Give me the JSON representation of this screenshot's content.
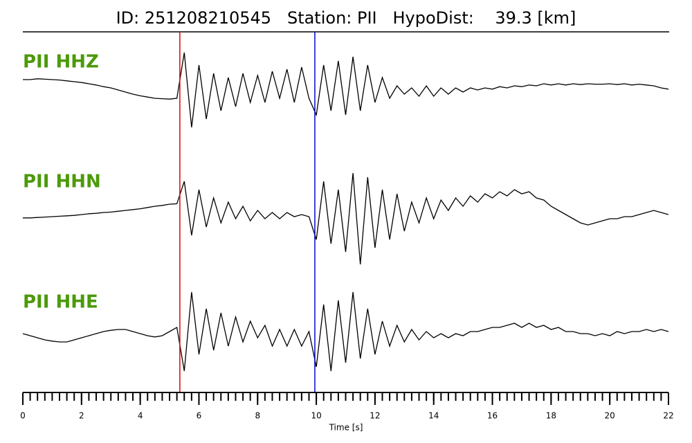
{
  "chart_data": {
    "type": "seismogram",
    "title": "ID: 251208210545   Station: PII   HypoDist:    39.3 [km]",
    "xlabel": "Time [s]",
    "xlim": [
      0,
      22
    ],
    "xticks": [
      0,
      2,
      4,
      6,
      8,
      10,
      12,
      14,
      16,
      18,
      20,
      22
    ],
    "ylim": [
      -1,
      1
    ],
    "label_color": "#4c9a0a",
    "markers": [
      {
        "x": 5.35,
        "color": "#e00000"
      },
      {
        "x": 9.95,
        "color": "#0000cc"
      }
    ],
    "x": [
      0,
      0.25,
      0.5,
      0.75,
      1,
      1.25,
      1.5,
      1.75,
      2,
      2.25,
      2.5,
      2.75,
      3,
      3.25,
      3.5,
      3.75,
      4,
      4.25,
      4.5,
      4.75,
      5,
      5.25,
      5.5,
      5.75,
      6,
      6.25,
      6.5,
      6.75,
      7,
      7.25,
      7.5,
      7.75,
      8,
      8.25,
      8.5,
      8.75,
      9,
      9.25,
      9.5,
      9.75,
      10,
      10.25,
      10.5,
      10.75,
      11,
      11.25,
      11.5,
      11.75,
      12,
      12.25,
      12.5,
      12.75,
      13,
      13.25,
      13.5,
      13.75,
      14,
      14.25,
      14.5,
      14.75,
      15,
      15.25,
      15.5,
      15.75,
      16,
      16.25,
      16.5,
      16.75,
      17,
      17.25,
      17.5,
      17.75,
      18,
      18.25,
      18.5,
      18.75,
      19,
      19.25,
      19.5,
      19.75,
      20,
      20.25,
      20.5,
      20.75,
      21,
      21.25,
      21.5,
      21.75,
      22
    ],
    "series": [
      {
        "name": "PII HHZ",
        "color": "#000000",
        "values": [
          0.25,
          0.25,
          0.27,
          0.26,
          0.25,
          0.24,
          0.22,
          0.2,
          0.18,
          0.15,
          0.12,
          0.08,
          0.05,
          0.0,
          -0.05,
          -0.1,
          -0.14,
          -0.17,
          -0.2,
          -0.21,
          -0.22,
          -0.2,
          0.9,
          -0.9,
          0.6,
          -0.7,
          0.4,
          -0.5,
          0.3,
          -0.4,
          0.4,
          -0.3,
          0.35,
          -0.3,
          0.45,
          -0.2,
          0.5,
          -0.3,
          0.55,
          -0.2,
          -0.6,
          0.6,
          -0.5,
          0.7,
          -0.6,
          0.8,
          -0.5,
          0.6,
          -0.3,
          0.3,
          -0.2,
          0.1,
          -0.1,
          0.05,
          -0.15,
          0.1,
          -0.15,
          0.05,
          -0.1,
          0.05,
          -0.05,
          0.05,
          0,
          0.05,
          0.02,
          0.08,
          0.05,
          0.1,
          0.08,
          0.12,
          0.1,
          0.15,
          0.12,
          0.15,
          0.12,
          0.15,
          0.13,
          0.15,
          0.14,
          0.14,
          0.15,
          0.13,
          0.15,
          0.12,
          0.14,
          0.12,
          0.1,
          0.05,
          0.02
        ]
      },
      {
        "name": "PII HHN",
        "color": "#000000",
        "values": [
          -0.08,
          -0.08,
          -0.07,
          -0.06,
          -0.05,
          -0.04,
          -0.03,
          -0.02,
          0,
          0.02,
          0.03,
          0.05,
          0.06,
          0.08,
          0.1,
          0.12,
          0.14,
          0.17,
          0.2,
          0.22,
          0.25,
          0.26,
          0.8,
          -0.5,
          0.6,
          -0.3,
          0.4,
          -0.2,
          0.3,
          -0.1,
          0.2,
          -0.15,
          0.1,
          -0.1,
          0.05,
          -0.1,
          0.05,
          -0.05,
          0,
          -0.05,
          -0.6,
          0.8,
          -0.7,
          0.6,
          -0.9,
          1.0,
          -1.2,
          0.9,
          -0.8,
          0.6,
          -0.6,
          0.5,
          -0.4,
          0.3,
          -0.2,
          0.4,
          -0.1,
          0.35,
          0.1,
          0.4,
          0.2,
          0.45,
          0.3,
          0.5,
          0.4,
          0.55,
          0.45,
          0.6,
          0.5,
          0.55,
          0.4,
          0.35,
          0.2,
          0.1,
          0,
          -0.1,
          -0.2,
          -0.25,
          -0.2,
          -0.15,
          -0.1,
          -0.1,
          -0.05,
          -0.05,
          0,
          0.05,
          0.1,
          0.05,
          0
        ]
      },
      {
        "name": "PII HHE",
        "color": "#000000",
        "values": [
          0,
          -0.05,
          -0.1,
          -0.15,
          -0.18,
          -0.2,
          -0.2,
          -0.15,
          -0.1,
          -0.05,
          0,
          0.05,
          0.08,
          0.1,
          0.1,
          0.05,
          0,
          -0.05,
          -0.08,
          -0.05,
          0.05,
          0.15,
          -0.9,
          1.0,
          -0.5,
          0.6,
          -0.4,
          0.5,
          -0.3,
          0.4,
          -0.2,
          0.3,
          -0.1,
          0.2,
          -0.3,
          0.1,
          -0.3,
          0.1,
          -0.3,
          0.05,
          -0.8,
          0.7,
          -0.9,
          0.8,
          -0.7,
          1.0,
          -0.6,
          0.6,
          -0.5,
          0.3,
          -0.3,
          0.2,
          -0.2,
          0.1,
          -0.15,
          0.05,
          -0.1,
          0,
          -0.1,
          0,
          -0.05,
          0.05,
          0.05,
          0.1,
          0.15,
          0.15,
          0.2,
          0.25,
          0.15,
          0.25,
          0.15,
          0.2,
          0.1,
          0.15,
          0.05,
          0.05,
          0,
          0,
          -0.05,
          0,
          -0.05,
          0.05,
          0,
          0.05,
          0.05,
          0.1,
          0.05,
          0.1,
          0.05
        ]
      }
    ]
  }
}
